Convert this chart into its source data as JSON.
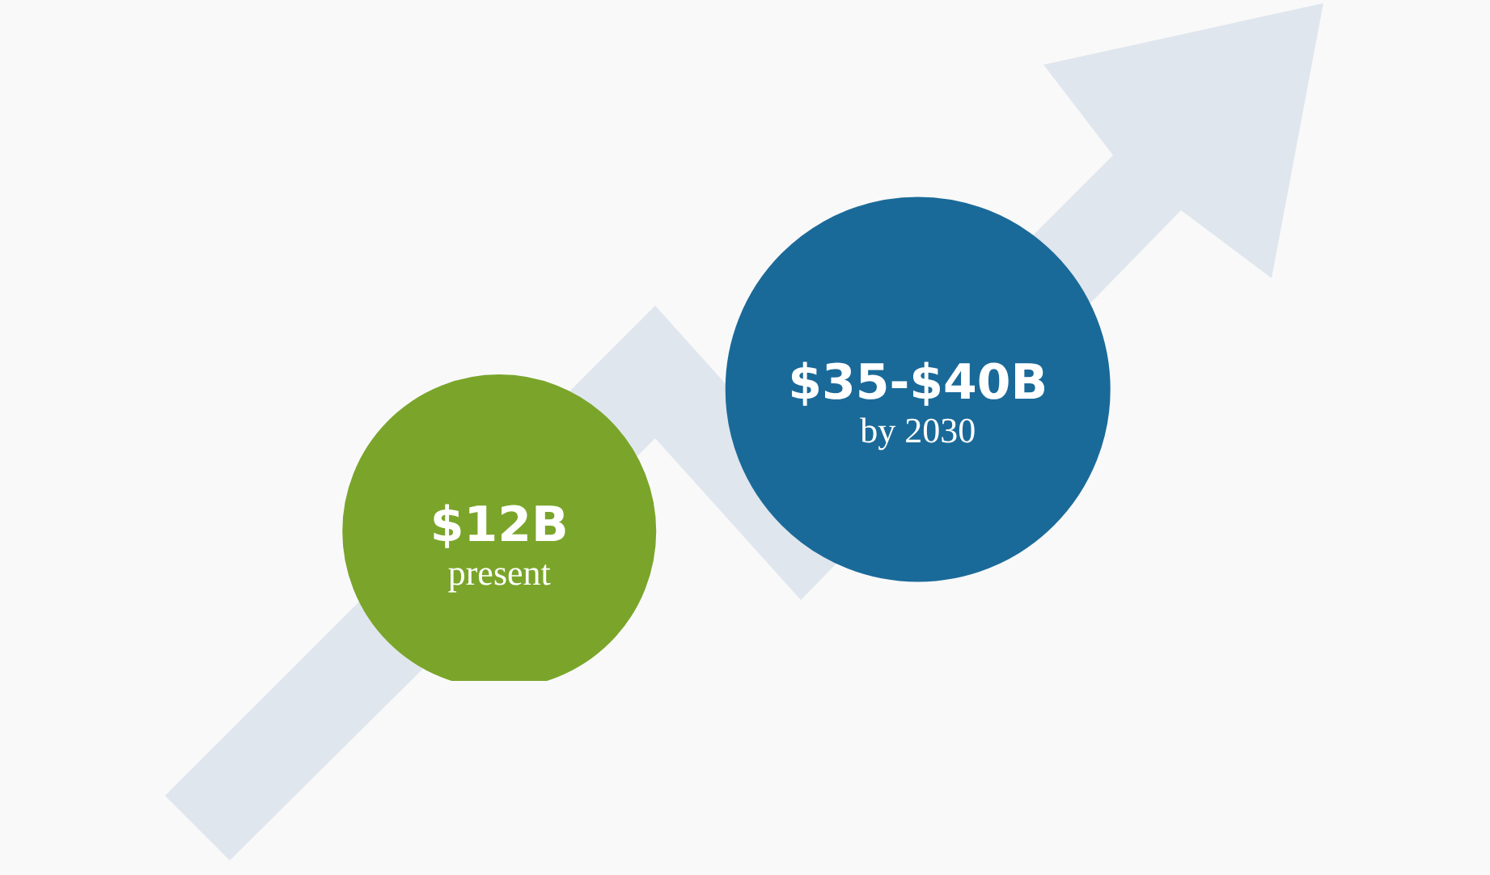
{
  "chart_data": {
    "type": "other",
    "categories": [
      "present",
      "by 2030"
    ],
    "values": [
      12,
      35
    ],
    "value_labels": [
      "$12B",
      "$35-$40B"
    ],
    "colors": [
      "#7aa52a",
      "#1a6a99"
    ]
  }
}
